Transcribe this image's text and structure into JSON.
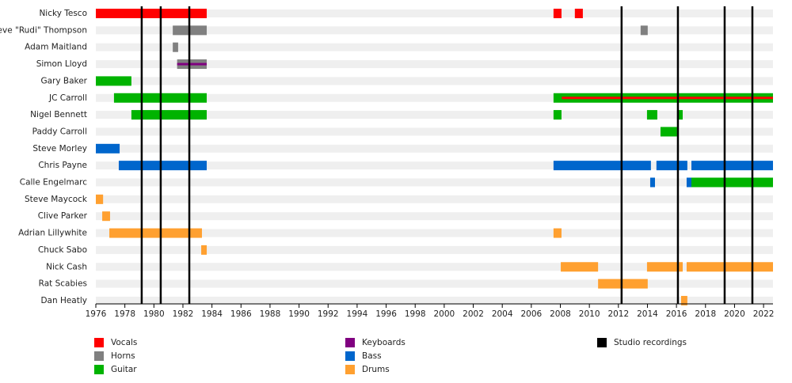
{
  "chart_data": {
    "type": "timeline",
    "xlim": [
      1976,
      2022.65
    ],
    "xticks": [
      1976,
      1978,
      1980,
      1982,
      1984,
      1986,
      1988,
      1990,
      1992,
      1994,
      1996,
      1998,
      2000,
      2002,
      2004,
      2006,
      2008,
      2010,
      2012,
      2014,
      2016,
      2018,
      2020,
      2022
    ],
    "roles": [
      {
        "name": "Vocals",
        "color": "#ff0000"
      },
      {
        "name": "Horns",
        "color": "#808080"
      },
      {
        "name": "Guitar",
        "color": "#00b300"
      },
      {
        "name": "Keyboards",
        "color": "#800080"
      },
      {
        "name": "Bass",
        "color": "#0066cc"
      },
      {
        "name": "Drums",
        "color": "#ffa030"
      }
    ],
    "recordings": {
      "name": "Studio recordings",
      "color": "#000000",
      "x": [
        1979.16,
        1980.47,
        1982.44,
        2012.22,
        2016.1,
        2019.32,
        2021.23
      ]
    },
    "members": [
      {
        "name": "Nicky Tesco",
        "spans": [
          {
            "role": 0,
            "start": 1976,
            "end": 1983.64
          },
          {
            "role": 0,
            "start": 2007.53,
            "end": 2008.08
          },
          {
            "role": 0,
            "start": 2009.0,
            "end": 2009.55
          }
        ]
      },
      {
        "name": "Steve \"Rudi\" Thompson",
        "spans": [
          {
            "role": 1,
            "start": 1981.3,
            "end": 1983.64
          },
          {
            "role": 1,
            "start": 2013.53,
            "end": 2014.02
          }
        ]
      },
      {
        "name": "Adam Maitland",
        "spans": [
          {
            "role": 1,
            "start": 1981.3,
            "end": 1981.67
          }
        ]
      },
      {
        "name": "Simon Lloyd",
        "spans": [
          {
            "role": 1,
            "start": 1981.6,
            "end": 1983.64
          },
          {
            "role": 3,
            "start": 1981.6,
            "end": 1983.64
          }
        ]
      },
      {
        "name": "Gary Baker",
        "spans": [
          {
            "role": 2,
            "start": 1976,
            "end": 1978.45
          }
        ]
      },
      {
        "name": "JC Carroll",
        "spans": [
          {
            "role": 2,
            "start": 1977.25,
            "end": 1983.64
          },
          {
            "role": 2,
            "start": 2007.53,
            "end": 2022.65
          },
          {
            "role": 0,
            "start": 2008.1,
            "end": 2022.65
          }
        ]
      },
      {
        "name": "Nigel Bennett",
        "spans": [
          {
            "role": 2,
            "start": 1978.45,
            "end": 1983.64
          },
          {
            "role": 2,
            "start": 2007.53,
            "end": 2008.08
          },
          {
            "role": 2,
            "start": 2013.97,
            "end": 2014.68
          },
          {
            "role": 2,
            "start": 2016.04,
            "end": 2016.43
          }
        ]
      },
      {
        "name": "Paddy Carroll",
        "spans": [
          {
            "role": 2,
            "start": 2014.9,
            "end": 2016.04
          }
        ]
      },
      {
        "name": "Steve Morley",
        "spans": [
          {
            "role": 4,
            "start": 1976,
            "end": 1977.64
          }
        ]
      },
      {
        "name": "Chris Payne",
        "spans": [
          {
            "role": 4,
            "start": 1977.58,
            "end": 1983.64
          },
          {
            "role": 4,
            "start": 2007.53,
            "end": 2014.24
          },
          {
            "role": 4,
            "start": 2014.62,
            "end": 2016.75
          },
          {
            "role": 4,
            "start": 2017.03,
            "end": 2022.65
          }
        ]
      },
      {
        "name": "Calle Engelmarc",
        "spans": [
          {
            "role": 4,
            "start": 2014.19,
            "end": 2014.52
          },
          {
            "role": 4,
            "start": 2016.7,
            "end": 2017.03
          },
          {
            "role": 2,
            "start": 2017.03,
            "end": 2022.65
          }
        ]
      },
      {
        "name": "Steve Maycock",
        "spans": [
          {
            "role": 5,
            "start": 1976,
            "end": 1976.5
          }
        ]
      },
      {
        "name": "Clive Parker",
        "spans": [
          {
            "role": 5,
            "start": 1976.44,
            "end": 1976.98
          }
        ]
      },
      {
        "name": "Adrian Lillywhite",
        "spans": [
          {
            "role": 5,
            "start": 1976.93,
            "end": 1983.31
          },
          {
            "role": 5,
            "start": 2007.53,
            "end": 2008.08
          }
        ]
      },
      {
        "name": "Chuck Sabo",
        "spans": [
          {
            "role": 5,
            "start": 1983.26,
            "end": 1983.64
          }
        ]
      },
      {
        "name": "Nick Cash",
        "spans": [
          {
            "role": 5,
            "start": 2008.03,
            "end": 2010.6
          },
          {
            "role": 5,
            "start": 2013.97,
            "end": 2016.43
          },
          {
            "role": 5,
            "start": 2016.7,
            "end": 2022.65
          }
        ]
      },
      {
        "name": "Rat Scabies",
        "spans": [
          {
            "role": 5,
            "start": 2010.6,
            "end": 2014.02
          }
        ]
      },
      {
        "name": "Dan Heatly",
        "spans": [
          {
            "role": 5,
            "start": 2016.32,
            "end": 2016.75
          }
        ]
      }
    ]
  }
}
